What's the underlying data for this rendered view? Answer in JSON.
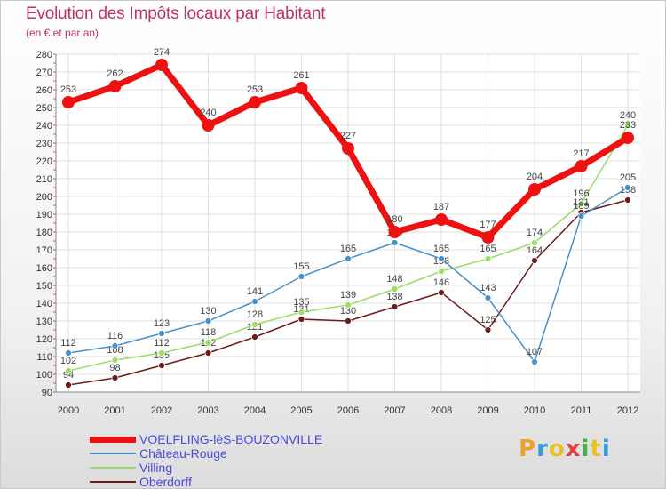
{
  "header": {
    "title": "Evolution des Impôts locaux par Habitant",
    "subtitle": "(en € et par an)"
  },
  "logo": {
    "letters": [
      "P",
      "r",
      "o",
      "x",
      "i",
      "t",
      "i"
    ],
    "colors": [
      "#f0a030",
      "#3a9ad9",
      "#e8c020",
      "#e04040",
      "#39b54a",
      "#e8c020",
      "#3a9ad9"
    ]
  },
  "chart_data": {
    "type": "line",
    "title": "Evolution des Impôts locaux par Habitant",
    "subtitle": "(en € et par an)",
    "xlabel": "",
    "ylabel": "",
    "ylim": [
      90,
      280
    ],
    "ytick_step": 10,
    "grid": true,
    "legend_position": "bottom-left",
    "x": [
      "2000",
      "2001",
      "2002",
      "2003",
      "2004",
      "2005",
      "2006",
      "2007",
      "2008",
      "2009",
      "2010",
      "2011",
      "2012"
    ],
    "series": [
      {
        "name": "Oberdorff",
        "color": "#6b1b1b",
        "values": [
          94,
          98,
          105,
          112,
          121,
          131,
          130,
          138,
          146,
          125,
          164,
          191,
          198
        ]
      },
      {
        "name": "Villing",
        "color": "#99dd66",
        "values": [
          102,
          108,
          112,
          118,
          128,
          135,
          139,
          148,
          158,
          165,
          174,
          196,
          240
        ]
      },
      {
        "name": "Château-Rouge",
        "color": "#4a90c8",
        "values": [
          112,
          116,
          123,
          130,
          141,
          155,
          165,
          174,
          165,
          143,
          107,
          189,
          205
        ]
      },
      {
        "name": "VOELFLING-lèS-BOUZONVILLE",
        "color": "#ee1111",
        "values": [
          253,
          262,
          274,
          240,
          253,
          261,
          227,
          180,
          187,
          177,
          204,
          217,
          233
        ]
      }
    ],
    "legend": [
      "VOELFLING-lèS-BOUZONVILLE",
      "Château-Rouge",
      "Villing",
      "Oberdorff"
    ]
  }
}
